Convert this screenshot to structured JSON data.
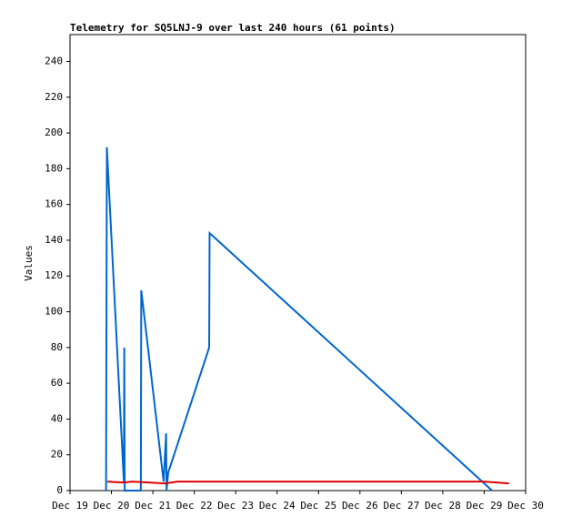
{
  "chart_data": {
    "type": "line",
    "title": "Telemetry for SQ5LNJ-9 over last 240 hours (61 points)",
    "y_label": "Values",
    "xlim": [
      0,
      11
    ],
    "xticks": [
      {
        "value": 0,
        "label": "Dec 19"
      },
      {
        "value": 1,
        "label": "Dec 20"
      },
      {
        "value": 2,
        "label": "Dec 21"
      },
      {
        "value": 3,
        "label": "Dec 22"
      },
      {
        "value": 4,
        "label": "Dec 23"
      },
      {
        "value": 5,
        "label": "Dec 24"
      },
      {
        "value": 6,
        "label": "Dec 25"
      },
      {
        "value": 7,
        "label": "Dec 26"
      },
      {
        "value": 8,
        "label": "Dec 27"
      },
      {
        "value": 9,
        "label": "Dec 28"
      },
      {
        "value": 10,
        "label": "Dec 29"
      },
      {
        "value": 11,
        "label": "Dec 30"
      }
    ],
    "ylim": [
      0,
      255
    ],
    "yticks": [
      0,
      20,
      40,
      60,
      80,
      100,
      120,
      140,
      160,
      180,
      200,
      220,
      240
    ],
    "series": [
      {
        "color": "#0066cc",
        "x": [
          0.87,
          0.88,
          0.89,
          0.92,
          1.3,
          1.31,
          1.32,
          1.71,
          1.72,
          2.26,
          2.32,
          2.33,
          2.37,
          3.36,
          3.37,
          10.19
        ],
        "values": [
          0,
          97,
          192,
          178,
          5,
          80,
          0,
          0,
          112,
          5,
          32,
          0,
          10,
          80,
          144,
          0
        ]
      },
      {
        "color": "#dd0000",
        "x": [
          0.9,
          1.3,
          1.5,
          2.3,
          2.6,
          10.0,
          10.6
        ],
        "values": [
          5,
          4.5,
          5,
          4,
          5,
          5,
          4
        ]
      }
    ]
  }
}
